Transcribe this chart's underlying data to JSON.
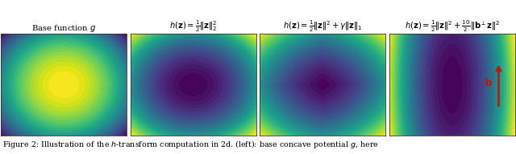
{
  "title_texts": [
    "Base function $g$",
    "$h(\\mathbf{z}) = \\frac{1}{2}\\|\\mathbf{z}\\|_2^2$",
    "$h(\\mathbf{z}) = \\frac{1}{2}\\|\\mathbf{z}\\|^2 + \\gamma\\|\\mathbf{z}\\|_1$",
    "$h(\\mathbf{z}) = \\frac{1}{2}\\|\\mathbf{z}\\|^2 + \\frac{10}{2}\\|\\mathbf{b}^{\\perp}\\mathbf{z}\\|^2$"
  ],
  "caption": "Figure 2: Illustration of the $h$-transform computation in 2d. (left): base concave potential $g$, here",
  "xlim": [
    -3,
    3
  ],
  "ylim": [
    -3,
    3
  ],
  "grid_n": 300,
  "gamma": 0.8,
  "b_perp_scale": 10.0,
  "background_color": "#ffffff",
  "arrow_color": "#cc1100",
  "title_fontsize": 7.2,
  "caption_fontsize": 6.8,
  "contour_levels": 40
}
